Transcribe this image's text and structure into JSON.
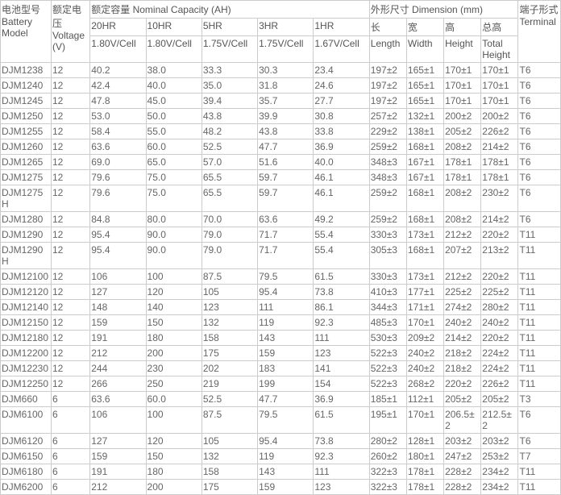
{
  "headers": {
    "model": "电池型号 Battery Model",
    "voltage": "额定电压 Voltage (V)",
    "capacity_group": "额定容量 Nominal Capacity (AH)",
    "dimension_group": "外形尺寸 Dimension (mm)",
    "terminal": "端子形式 Terminal",
    "cap_20hr": "20HR",
    "cap_10hr": "10HR",
    "cap_5hr": "5HR",
    "cap_3hr": "3HR",
    "cap_1hr": "1HR",
    "cap_sub_a": "1.80V/Cell",
    "cap_sub_b": "1.80V/Cell",
    "cap_sub_c": "1.75V/Cell",
    "cap_sub_d": "1.75V/Cell",
    "cap_sub_e": "1.67V/Cell",
    "length": "长",
    "width": "宽",
    "height": "高",
    "total_height": "总高",
    "length_sub": "Length",
    "width_sub": "Width",
    "height_sub": "Height",
    "total_height_sub": "Total Height"
  },
  "rows": [
    {
      "m": "DJM1238",
      "v": "12",
      "c": [
        "40.2",
        "38.0",
        "33.3",
        "30.3",
        "23.4"
      ],
      "d": [
        "197±2",
        "165±1",
        "170±1",
        "170±1"
      ],
      "t": "T6"
    },
    {
      "m": "DJM1240",
      "v": "12",
      "c": [
        "42.4",
        "40.0",
        "35.0",
        "31.8",
        "24.6"
      ],
      "d": [
        "197±2",
        "165±1",
        "170±1",
        "170±1"
      ],
      "t": "T6"
    },
    {
      "m": "DJM1245",
      "v": "12",
      "c": [
        "47.8",
        "45.0",
        "39.4",
        "35.7",
        "27.7"
      ],
      "d": [
        "197±2",
        "165±1",
        "170±1",
        "170±1"
      ],
      "t": "T6"
    },
    {
      "m": "DJM1250",
      "v": "12",
      "c": [
        "53.0",
        "50.0",
        "43.8",
        "39.9",
        "30.8"
      ],
      "d": [
        "257±2",
        "132±1",
        "200±2",
        "200±2"
      ],
      "t": "T6"
    },
    {
      "m": "DJM1255",
      "v": "12",
      "c": [
        "58.4",
        "55.0",
        "48.2",
        "43.8",
        "33.8"
      ],
      "d": [
        "229±2",
        "138±1",
        "205±2",
        "226±2"
      ],
      "t": "T6"
    },
    {
      "m": "DJM1260",
      "v": "12",
      "c": [
        "63.6",
        "60.0",
        "52.5",
        "47.7",
        "36.9"
      ],
      "d": [
        "259±2",
        "168±1",
        "208±2",
        "214±2"
      ],
      "t": "T6"
    },
    {
      "m": "DJM1265",
      "v": "12",
      "c": [
        "69.0",
        "65.0",
        "57.0",
        "51.6",
        "40.0"
      ],
      "d": [
        "348±3",
        "167±1",
        "178±1",
        "178±1"
      ],
      "t": "T6"
    },
    {
      "m": "DJM1275",
      "v": "12",
      "c": [
        "79.6",
        "75.0",
        "65.5",
        "59.7",
        "46.1"
      ],
      "d": [
        "348±3",
        "167±1",
        "178±1",
        "178±1"
      ],
      "t": "T6"
    },
    {
      "m": "DJM1275H",
      "v": "12",
      "c": [
        "79.6",
        "75.0",
        "65.5",
        "59.7",
        "46.1"
      ],
      "d": [
        "259±2",
        "168±1",
        "208±2",
        "230±2"
      ],
      "t": "T6"
    },
    {
      "m": "DJM1280",
      "v": "12",
      "c": [
        "84.8",
        "80.0",
        "70.0",
        "63.6",
        "49.2"
      ],
      "d": [
        "259±2",
        "168±1",
        "208±2",
        "214±2"
      ],
      "t": "T6"
    },
    {
      "m": "DJM1290",
      "v": "12",
      "c": [
        "95.4",
        "90.0",
        "79.0",
        "71.7",
        "55.4"
      ],
      "d": [
        "330±3",
        "173±1",
        "212±2",
        "220±2"
      ],
      "t": "T11"
    },
    {
      "m": "DJM1290H",
      "v": "12",
      "c": [
        "95.4",
        "90.0",
        "79.0",
        "71.7",
        "55.4"
      ],
      "d": [
        "305±3",
        "168±1",
        "207±2",
        "213±2"
      ],
      "t": "T11"
    },
    {
      "m": "DJM12100",
      "v": "12",
      "c": [
        "106",
        "100",
        "87.5",
        "79.5",
        "61.5"
      ],
      "d": [
        "330±3",
        "173±1",
        "212±2",
        "220±2"
      ],
      "t": "T11"
    },
    {
      "m": "DJM12120",
      "v": "12",
      "c": [
        "127",
        "120",
        "105",
        "95.4",
        "73.8"
      ],
      "d": [
        "410±3",
        "177±1",
        "225±2",
        "225±2"
      ],
      "t": "T11"
    },
    {
      "m": "DJM12140",
      "v": "12",
      "c": [
        "148",
        "140",
        "123",
        "111",
        "86.1"
      ],
      "d": [
        "344±3",
        "171±1",
        "274±2",
        "280±2"
      ],
      "t": "T11"
    },
    {
      "m": "DJM12150",
      "v": "12",
      "c": [
        "159",
        "150",
        "132",
        "119",
        "92.3"
      ],
      "d": [
        "485±3",
        "170±1",
        "240±2",
        "240±2"
      ],
      "t": "T11"
    },
    {
      "m": "DJM12180",
      "v": "12",
      "c": [
        "191",
        "180",
        "158",
        "143",
        "111"
      ],
      "d": [
        "530±3",
        "209±2",
        "214±2",
        "220±2"
      ],
      "t": "T11"
    },
    {
      "m": "DJM12200",
      "v": "12",
      "c": [
        "212",
        "200",
        "175",
        "159",
        "123"
      ],
      "d": [
        "522±3",
        "240±2",
        "218±2",
        "224±2"
      ],
      "t": "T11"
    },
    {
      "m": "DJM12230",
      "v": "12",
      "c": [
        "244",
        "230",
        "202",
        "183",
        "141"
      ],
      "d": [
        "522±3",
        "240±2",
        "218±2",
        "224±2"
      ],
      "t": "T11"
    },
    {
      "m": "DJM12250",
      "v": "12",
      "c": [
        "266",
        "250",
        "219",
        "199",
        "154"
      ],
      "d": [
        "522±3",
        "268±2",
        "220±2",
        "226±2"
      ],
      "t": "T11"
    },
    {
      "m": "DJM660",
      "v": "6",
      "c": [
        "63.6",
        "60.0",
        "52.5",
        "47.7",
        "36.9"
      ],
      "d": [
        "185±1",
        "112±1",
        "205±2",
        "205±2"
      ],
      "t": "T3"
    },
    {
      "m": "DJM6100",
      "v": "6",
      "c": [
        "106",
        "100",
        "87.5",
        "79.5",
        "61.5"
      ],
      "d": [
        "195±1",
        "170±1",
        "206.5±2",
        "212.5±2"
      ],
      "t": "T6"
    },
    {
      "m": "DJM6120",
      "v": "6",
      "c": [
        "127",
        "120",
        "105",
        "95.4",
        "73.8"
      ],
      "d": [
        "280±2",
        "128±1",
        "203±2",
        "203±2"
      ],
      "t": "T6"
    },
    {
      "m": "DJM6150",
      "v": "6",
      "c": [
        "159",
        "150",
        "132",
        "119",
        "92.3"
      ],
      "d": [
        "260±2",
        "180±1",
        "247±2",
        "253±2"
      ],
      "t": "T7"
    },
    {
      "m": "DJM6180",
      "v": "6",
      "c": [
        "191",
        "180",
        "158",
        "143",
        "111"
      ],
      "d": [
        "322±3",
        "178±1",
        "228±2",
        "234±2"
      ],
      "t": "T11"
    },
    {
      "m": "DJM6200",
      "v": "6",
      "c": [
        "212",
        "200",
        "175",
        "159",
        "123"
      ],
      "d": [
        "322±3",
        "178±1",
        "228±2",
        "234±2"
      ],
      "t": "T11"
    }
  ]
}
